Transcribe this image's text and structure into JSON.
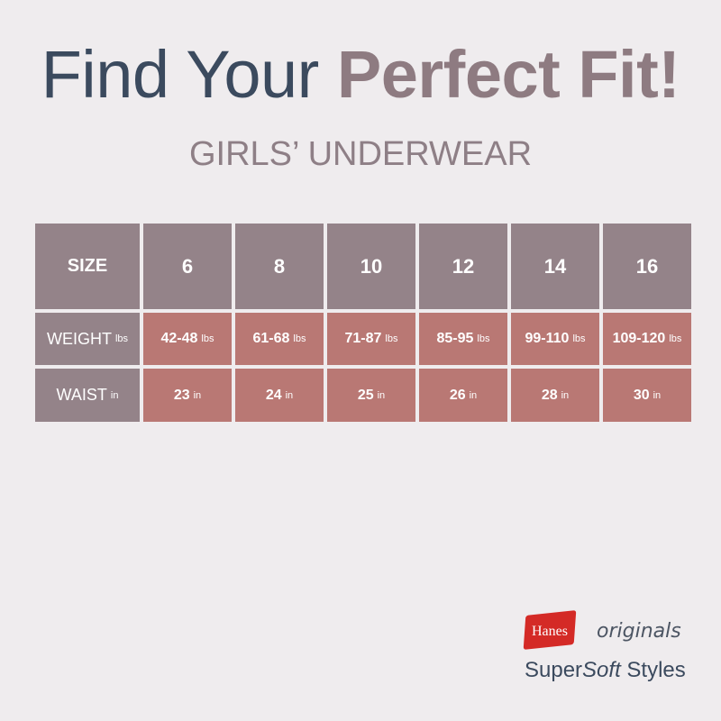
{
  "title": {
    "part1": "Find Your ",
    "part2": "Perfect Fit!"
  },
  "subtitle": "GIRLS’ UNDERWEAR",
  "table": {
    "size_label": "SIZE",
    "sizes": [
      "6",
      "8",
      "10",
      "12",
      "14",
      "16"
    ],
    "weight": {
      "label": "WEIGHT",
      "unit": "lbs",
      "values": [
        "42-48",
        "61-68",
        "71-87",
        "85-95",
        "99-110",
        "109-120"
      ]
    },
    "waist": {
      "label": "WAIST",
      "unit": "in",
      "values": [
        "23",
        "24",
        "25",
        "26",
        "28",
        "30"
      ]
    }
  },
  "logo": {
    "brand": "Hanes",
    "line": "originals",
    "tagline_a": "SuperSoft",
    "tagline_b": " Styles"
  },
  "colors": {
    "background": "#efecee",
    "header": "#948389",
    "cell": "#b97874",
    "title": "#3b4a5e",
    "accent": "#8e7b81",
    "logo_red": "#d42a26"
  }
}
